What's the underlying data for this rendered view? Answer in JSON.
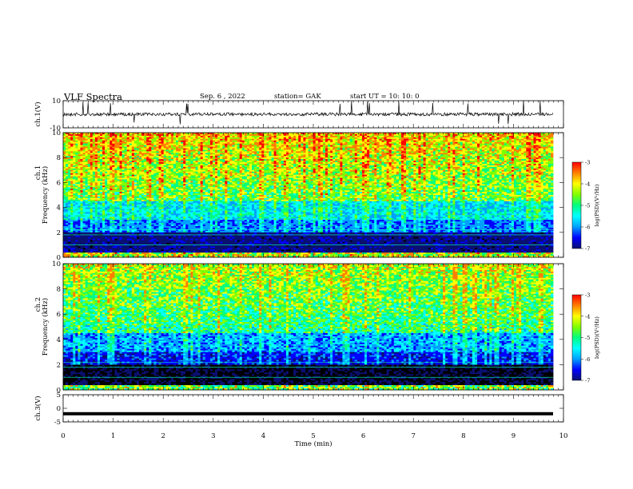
{
  "header": {
    "title": "VLF Spectra",
    "date": "Sep. 6 , 2022",
    "station": "station= GAK",
    "start": "start UT = 10: 10: 0"
  },
  "colors": {
    "scale": [
      "#000000",
      "#0a1070",
      "#0000ff",
      "#00a0ff",
      "#00ffff",
      "#00ff80",
      "#80ff00",
      "#ffff00",
      "#ff8000",
      "#ff0000"
    ]
  },
  "chart_data": [
    {
      "type": "line",
      "panel": "ch1-waveform",
      "ylabel": "ch.1(V)",
      "ylim": [
        -10,
        10
      ],
      "yticks": [
        "10",
        "-10"
      ],
      "trace_level": 0
    },
    {
      "type": "heatmap",
      "panel": "ch1-spectrogram",
      "ylabel": "Frequency (kHz)",
      "channel_label": "ch.1",
      "ylim": [
        0,
        10
      ],
      "yticks": [
        "0",
        "2",
        "4",
        "6",
        "8",
        "10"
      ],
      "colorbar": {
        "label": "log(PSD)(V²/Hz)",
        "range": [
          -7,
          -3
        ],
        "ticks": [
          "-3",
          "-4",
          "-5",
          "-6",
          "-7"
        ]
      }
    },
    {
      "type": "heatmap",
      "panel": "ch2-spectrogram",
      "ylabel": "Frequency (kHz)",
      "channel_label": "ch.2",
      "ylim": [
        0,
        10
      ],
      "yticks": [
        "0",
        "2",
        "4",
        "6",
        "8",
        "10"
      ],
      "colorbar": {
        "label": "log(PSD)(V²/Hz)",
        "range": [
          -7,
          -3
        ],
        "ticks": [
          "-3",
          "-4",
          "-5",
          "-6",
          "-7"
        ]
      }
    },
    {
      "type": "line",
      "panel": "ch3-waveform",
      "ylabel": "ch.3(V)",
      "ylim": [
        -5,
        5
      ],
      "yticks": [
        "5",
        "0",
        "-5"
      ],
      "trace_level": -2
    }
  ],
  "xaxis": {
    "label": "Time (min)",
    "range": [
      0,
      10
    ],
    "ticks": [
      "0",
      "1",
      "2",
      "3",
      "4",
      "5",
      "6",
      "7",
      "8",
      "9",
      "10"
    ]
  }
}
